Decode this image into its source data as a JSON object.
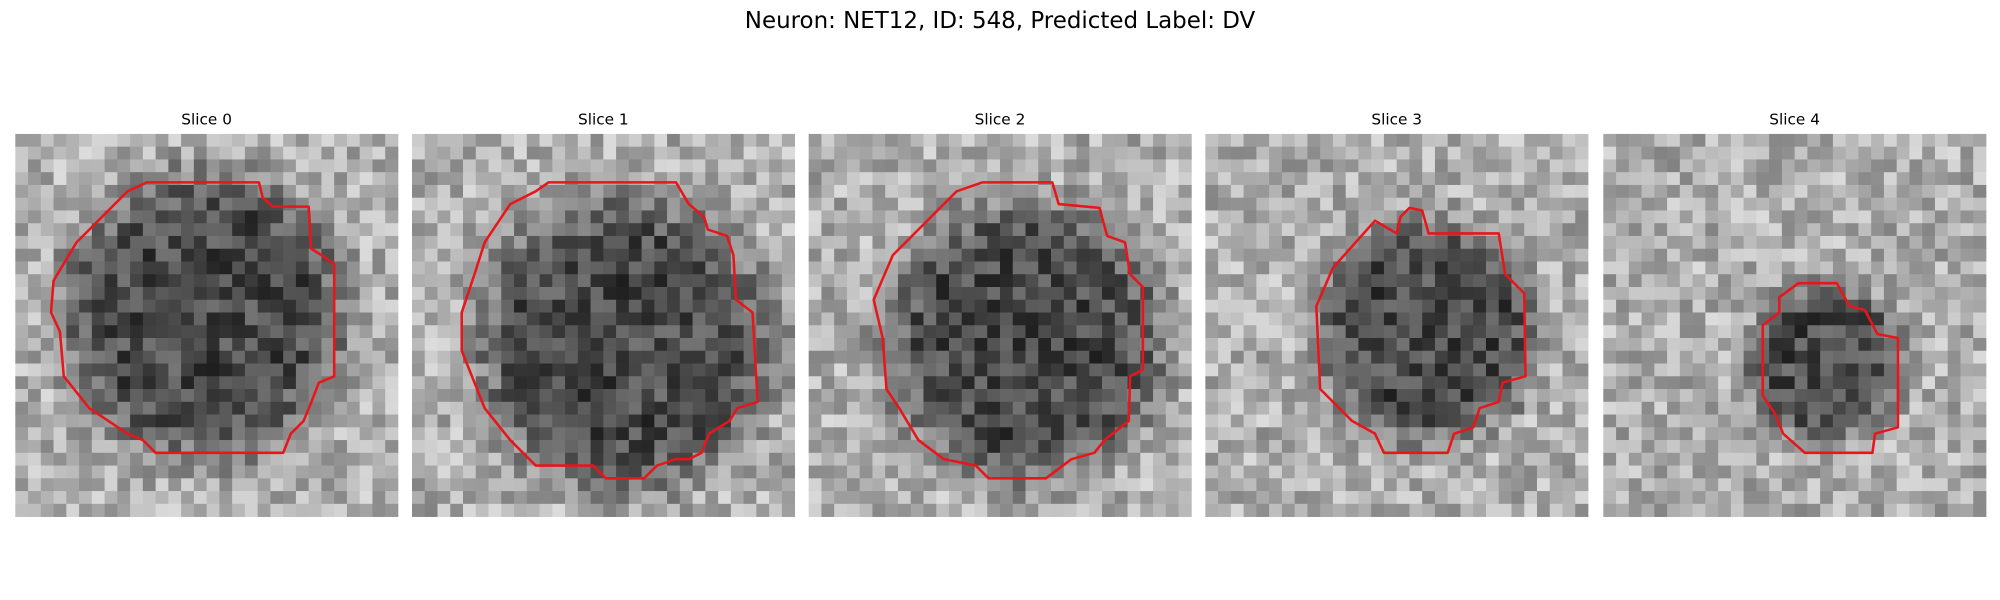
{
  "title": "Neuron: NET12, ID: 548, Predicted Label: DV",
  "panels": [
    {
      "title": "Slice 0"
    },
    {
      "title": "Slice 1"
    },
    {
      "title": "Slice 2"
    },
    {
      "title": "Slice 3"
    },
    {
      "title": "Slice 4"
    }
  ]
}
